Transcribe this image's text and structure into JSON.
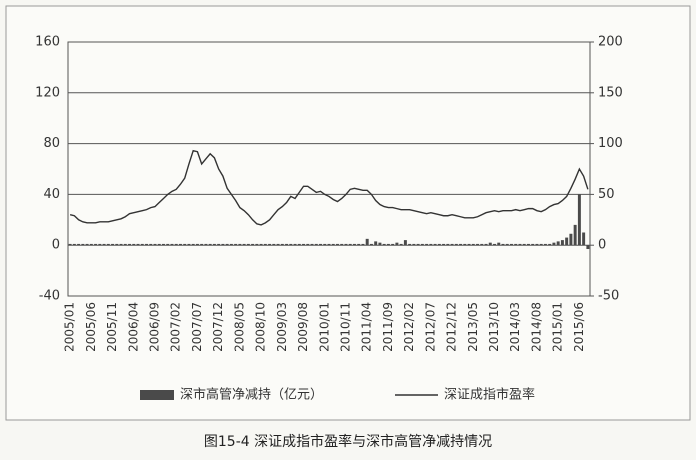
{
  "chart_data": {
    "type": "bar-line",
    "caption": "图15-4    深证成指市盈率与深市高管净减持情况",
    "categories": [
      "2005/01",
      null,
      null,
      null,
      null,
      "2005/06",
      null,
      null,
      null,
      null,
      "2005/11",
      null,
      null,
      null,
      null,
      "2006/04",
      null,
      null,
      null,
      null,
      "2006/09",
      null,
      null,
      null,
      null,
      "2007/02",
      null,
      null,
      null,
      null,
      "2007/07",
      null,
      null,
      null,
      null,
      "2007/12",
      null,
      null,
      null,
      null,
      "2008/05",
      null,
      null,
      null,
      null,
      "2008/10",
      null,
      null,
      null,
      null,
      "2009/03",
      null,
      null,
      null,
      null,
      "2009/08",
      null,
      null,
      null,
      null,
      "2010/01",
      null,
      null,
      null,
      null,
      "2010/11",
      null,
      null,
      null,
      null,
      "2011/04",
      null,
      null,
      null,
      null,
      "2011/09",
      null,
      null,
      null,
      null,
      "2012/02",
      null,
      null,
      null,
      null,
      "2012/07",
      null,
      null,
      null,
      null,
      "2012/12",
      null,
      null,
      null,
      null,
      "2013/05",
      null,
      null,
      null,
      null,
      "2013/10",
      null,
      null,
      null,
      null,
      "2014/03",
      null,
      null,
      null,
      null,
      "2014/08",
      null,
      null,
      null,
      null,
      "2015/01",
      null,
      null,
      null,
      null,
      "2015/06",
      null,
      null
    ],
    "series": [
      {
        "name": "深市高管净减持（亿元）",
        "color": "#4a4a4a",
        "values": [
          1,
          1,
          1,
          1,
          1,
          1,
          1,
          1,
          1,
          1,
          1,
          1,
          1,
          1,
          1,
          1,
          1,
          1,
          1,
          1,
          1,
          1,
          1,
          1,
          1,
          1,
          1,
          1,
          1,
          1,
          1,
          1,
          1,
          1,
          1,
          1,
          1,
          1,
          1,
          1,
          1,
          1,
          1,
          1,
          1,
          1,
          1,
          1,
          1,
          1,
          1,
          1,
          1,
          1,
          1,
          1,
          1,
          1,
          1,
          1,
          1,
          1,
          1,
          1,
          1,
          1,
          1,
          1,
          1,
          1,
          5,
          1,
          3,
          2,
          1,
          1,
          1,
          2,
          1,
          4,
          1,
          1,
          1,
          1,
          1,
          1,
          1,
          1,
          1,
          1,
          1,
          1,
          1,
          1,
          1,
          1,
          1,
          1,
          1,
          2,
          1,
          2,
          1,
          1,
          1,
          1,
          1,
          1,
          1,
          1,
          1,
          1,
          1,
          1,
          2,
          3,
          4,
          6,
          9,
          16,
          40,
          10,
          -3
        ]
      },
      {
        "name": "深证成指市盈率",
        "color": "#333333",
        "axis": "y2",
        "values": [
          30,
          29,
          25,
          23,
          22,
          22,
          22,
          23,
          23,
          23,
          24,
          25,
          26,
          28,
          31,
          32,
          33,
          34,
          35,
          37,
          38,
          42,
          46,
          50,
          53,
          55,
          60,
          66,
          80,
          93,
          92,
          80,
          85,
          90,
          86,
          75,
          68,
          56,
          50,
          44,
          37,
          34,
          30,
          25,
          21,
          20,
          22,
          25,
          30,
          35,
          38,
          42,
          48,
          46,
          52,
          58,
          58,
          55,
          52,
          53,
          50,
          48,
          45,
          43,
          46,
          50,
          55,
          56,
          55,
          54,
          54,
          50,
          44,
          40,
          38,
          37,
          37,
          36,
          35,
          35,
          35,
          34,
          33,
          32,
          31,
          32,
          31,
          30,
          29,
          29,
          30,
          29,
          28,
          27,
          27,
          27,
          28,
          30,
          32,
          33,
          34,
          33,
          34,
          34,
          34,
          35,
          34,
          35,
          36,
          36,
          34,
          33,
          35,
          38,
          40,
          41,
          44,
          48,
          56,
          65,
          75,
          68,
          55
        ]
      }
    ],
    "ylim": [
      -40,
      160
    ],
    "yticks": [
      -40,
      0,
      40,
      80,
      120,
      160
    ],
    "y2lim": [
      -50,
      200
    ],
    "y2ticks": [
      -50,
      0,
      50,
      100,
      150,
      200
    ],
    "grid": true
  }
}
